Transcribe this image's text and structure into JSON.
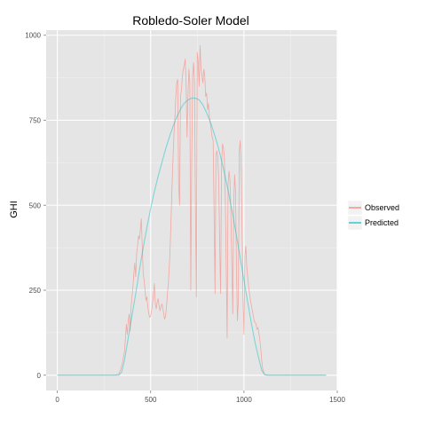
{
  "chart_data": {
    "type": "line",
    "title": "Robledo-Soler Model",
    "xlabel": "",
    "ylabel": "GHI",
    "xlim": [
      -60,
      1500
    ],
    "ylim": [
      -45,
      1015
    ],
    "x_ticks": [
      0,
      500,
      1000,
      1500
    ],
    "y_ticks": [
      0,
      250,
      500,
      750,
      1000
    ],
    "grid": true,
    "legend_position": "right",
    "series": [
      {
        "name": "Observed",
        "color": "#F8766D",
        "points": [
          [
            0,
            0
          ],
          [
            310,
            0
          ],
          [
            330,
            4
          ],
          [
            340,
            18
          ],
          [
            350,
            40
          ],
          [
            360,
            70
          ],
          [
            365,
            110
          ],
          [
            370,
            150
          ],
          [
            375,
            120
          ],
          [
            380,
            160
          ],
          [
            385,
            180
          ],
          [
            390,
            130
          ],
          [
            395,
            200
          ],
          [
            400,
            230
          ],
          [
            405,
            260
          ],
          [
            410,
            300
          ],
          [
            415,
            330
          ],
          [
            420,
            290
          ],
          [
            425,
            360
          ],
          [
            430,
            380
          ],
          [
            435,
            410
          ],
          [
            440,
            400
          ],
          [
            445,
            430
          ],
          [
            450,
            460
          ],
          [
            455,
            380
          ],
          [
            460,
            300
          ],
          [
            465,
            280
          ],
          [
            470,
            250
          ],
          [
            475,
            220
          ],
          [
            480,
            230
          ],
          [
            485,
            200
          ],
          [
            490,
            180
          ],
          [
            495,
            170
          ],
          [
            500,
            175
          ],
          [
            505,
            190
          ],
          [
            510,
            210
          ],
          [
            515,
            240
          ],
          [
            520,
            270
          ],
          [
            525,
            210
          ],
          [
            530,
            195
          ],
          [
            535,
            215
          ],
          [
            540,
            225
          ],
          [
            545,
            205
          ],
          [
            550,
            190
          ],
          [
            555,
            200
          ],
          [
            560,
            210
          ],
          [
            565,
            200
          ],
          [
            570,
            180
          ],
          [
            575,
            165
          ],
          [
            580,
            175
          ],
          [
            585,
            200
          ],
          [
            590,
            240
          ],
          [
            595,
            270
          ],
          [
            600,
            320
          ],
          [
            605,
            380
          ],
          [
            610,
            470
          ],
          [
            615,
            560
          ],
          [
            620,
            640
          ],
          [
            625,
            710
          ],
          [
            630,
            760
          ],
          [
            635,
            820
          ],
          [
            640,
            860
          ],
          [
            645,
            870
          ],
          [
            650,
            560
          ],
          [
            655,
            500
          ],
          [
            660,
            820
          ],
          [
            665,
            840
          ],
          [
            670,
            880
          ],
          [
            675,
            900
          ],
          [
            680,
            910
          ],
          [
            685,
            930
          ],
          [
            690,
            860
          ],
          [
            695,
            700
          ],
          [
            700,
            820
          ],
          [
            705,
            900
          ],
          [
            710,
            860
          ],
          [
            715,
            250
          ],
          [
            720,
            620
          ],
          [
            725,
            880
          ],
          [
            730,
            920
          ],
          [
            735,
            860
          ],
          [
            740,
            500
          ],
          [
            745,
            230
          ],
          [
            750,
            950
          ],
          [
            755,
            920
          ],
          [
            760,
            850
          ],
          [
            765,
            970
          ],
          [
            770,
            900
          ],
          [
            775,
            880
          ],
          [
            780,
            860
          ],
          [
            785,
            900
          ],
          [
            790,
            880
          ],
          [
            795,
            820
          ],
          [
            800,
            830
          ],
          [
            805,
            780
          ],
          [
            810,
            800
          ],
          [
            815,
            760
          ],
          [
            820,
            740
          ],
          [
            825,
            720
          ],
          [
            830,
            700
          ],
          [
            835,
            690
          ],
          [
            840,
            480
          ],
          [
            845,
            240
          ],
          [
            850,
            650
          ],
          [
            855,
            660
          ],
          [
            860,
            640
          ],
          [
            865,
            570
          ],
          [
            870,
            380
          ],
          [
            875,
            240
          ],
          [
            880,
            620
          ],
          [
            885,
            680
          ],
          [
            890,
            670
          ],
          [
            895,
            640
          ],
          [
            900,
            520
          ],
          [
            905,
            320
          ],
          [
            910,
            110
          ],
          [
            915,
            560
          ],
          [
            920,
            600
          ],
          [
            925,
            575
          ],
          [
            930,
            480
          ],
          [
            935,
            330
          ],
          [
            940,
            180
          ],
          [
            945,
            500
          ],
          [
            950,
            590
          ],
          [
            955,
            540
          ],
          [
            960,
            310
          ],
          [
            965,
            160
          ],
          [
            970,
            220
          ],
          [
            975,
            660
          ],
          [
            980,
            690
          ],
          [
            985,
            620
          ],
          [
            990,
            420
          ],
          [
            995,
            230
          ],
          [
            1000,
            120
          ],
          [
            1005,
            350
          ],
          [
            1010,
            380
          ],
          [
            1015,
            320
          ],
          [
            1020,
            290
          ],
          [
            1025,
            260
          ],
          [
            1030,
            240
          ],
          [
            1035,
            220
          ],
          [
            1040,
            205
          ],
          [
            1045,
            190
          ],
          [
            1050,
            175
          ],
          [
            1055,
            160
          ],
          [
            1060,
            155
          ],
          [
            1065,
            150
          ],
          [
            1070,
            135
          ],
          [
            1075,
            140
          ],
          [
            1080,
            125
          ],
          [
            1085,
            105
          ],
          [
            1090,
            80
          ],
          [
            1095,
            45
          ],
          [
            1100,
            20
          ],
          [
            1110,
            2
          ],
          [
            1120,
            0
          ],
          [
            1440,
            0
          ]
        ]
      },
      {
        "name": "Predicted",
        "color": "#00BFC4",
        "points": [
          [
            0,
            0
          ],
          [
            330,
            0
          ],
          [
            345,
            10
          ],
          [
            360,
            45
          ],
          [
            380,
            110
          ],
          [
            400,
            175
          ],
          [
            420,
            240
          ],
          [
            440,
            310
          ],
          [
            460,
            375
          ],
          [
            480,
            435
          ],
          [
            500,
            490
          ],
          [
            520,
            540
          ],
          [
            540,
            585
          ],
          [
            560,
            625
          ],
          [
            580,
            665
          ],
          [
            600,
            700
          ],
          [
            620,
            732
          ],
          [
            640,
            760
          ],
          [
            660,
            783
          ],
          [
            680,
            800
          ],
          [
            700,
            810
          ],
          [
            720,
            815
          ],
          [
            740,
            815
          ],
          [
            760,
            810
          ],
          [
            780,
            795
          ],
          [
            800,
            772
          ],
          [
            820,
            745
          ],
          [
            840,
            712
          ],
          [
            860,
            675
          ],
          [
            880,
            632
          ],
          [
            900,
            583
          ],
          [
            920,
            530
          ],
          [
            940,
            472
          ],
          [
            960,
            410
          ],
          [
            980,
            345
          ],
          [
            1000,
            280
          ],
          [
            1020,
            215
          ],
          [
            1040,
            152
          ],
          [
            1060,
            95
          ],
          [
            1080,
            48
          ],
          [
            1095,
            15
          ],
          [
            1110,
            2
          ],
          [
            1130,
            0
          ],
          [
            1440,
            0
          ]
        ]
      }
    ]
  }
}
